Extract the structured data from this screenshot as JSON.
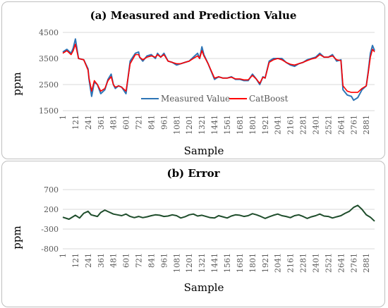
{
  "chart_data": [
    {
      "type": "line",
      "title": "(a) Measured and Prediction  Value",
      "xlabel": "Sample",
      "ylabel": "ppm",
      "ylim": [
        1500,
        4500
      ],
      "yticks": [
        "1500",
        "2500",
        "3500",
        "4500"
      ],
      "xlim": [
        1,
        2960
      ],
      "xticks": [
        "1",
        "121",
        "241",
        "361",
        "481",
        "601",
        "721",
        "841",
        "961",
        "1081",
        "1201",
        "1321",
        "1441",
        "1561",
        "1681",
        "1801",
        "1921",
        "2041",
        "2161",
        "2281",
        "2401",
        "2521",
        "2641",
        "2761",
        "2881"
      ],
      "grid": true,
      "legend_position": "bottom-left",
      "series": [
        {
          "name": "Measured Value",
          "color": "#2E75B6",
          "x": [
            1,
            40,
            80,
            100,
            121,
            150,
            200,
            241,
            250,
            275,
            300,
            330,
            361,
            400,
            430,
            460,
            481,
            500,
            530,
            560,
            601,
            640,
            690,
            721,
            730,
            760,
            800,
            841,
            880,
            900,
            930,
            961,
            1000,
            1040,
            1081,
            1120,
            1160,
            1201,
            1240,
            1280,
            1300,
            1321,
            1340,
            1380,
            1441,
            1480,
            1520,
            1561,
            1600,
            1640,
            1681,
            1720,
            1760,
            1801,
            1840,
            1870,
            1900,
            1921,
            1960,
            2000,
            2041,
            2080,
            2120,
            2161,
            2200,
            2240,
            2281,
            2320,
            2360,
            2401,
            2440,
            2480,
            2521,
            2560,
            2600,
            2641,
            2660,
            2700,
            2740,
            2761,
            2800,
            2840,
            2881,
            2900,
            2920,
            2940,
            2960
          ],
          "values": [
            3750,
            3850,
            3700,
            3900,
            4250,
            3500,
            3450,
            3100,
            2700,
            2050,
            2600,
            2500,
            2150,
            2300,
            2700,
            2900,
            2500,
            2350,
            2450,
            2400,
            2150,
            3400,
            3700,
            3750,
            3550,
            3400,
            3600,
            3650,
            3500,
            3700,
            3550,
            3700,
            3400,
            3350,
            3250,
            3300,
            3350,
            3400,
            3550,
            3700,
            3500,
            3950,
            3650,
            3300,
            2700,
            2800,
            2750,
            2750,
            2800,
            2700,
            2700,
            2650,
            2650,
            2900,
            2700,
            2500,
            2800,
            2750,
            3400,
            3500,
            3500,
            3500,
            3350,
            3250,
            3200,
            3300,
            3350,
            3450,
            3500,
            3550,
            3700,
            3550,
            3550,
            3650,
            3400,
            3450,
            2300,
            2100,
            2050,
            1900,
            2000,
            2300,
            2450,
            3000,
            3700,
            4000,
            3800
          ]
        },
        {
          "name": "CatBoost",
          "color": "#FF0000",
          "x": [
            1,
            40,
            80,
            100,
            121,
            150,
            200,
            241,
            250,
            275,
            300,
            330,
            361,
            400,
            430,
            460,
            481,
            500,
            530,
            560,
            601,
            640,
            690,
            721,
            730,
            760,
            800,
            841,
            880,
            900,
            930,
            961,
            1000,
            1040,
            1081,
            1120,
            1160,
            1201,
            1240,
            1280,
            1300,
            1321,
            1340,
            1380,
            1441,
            1480,
            1520,
            1561,
            1600,
            1640,
            1681,
            1720,
            1760,
            1801,
            1840,
            1870,
            1900,
            1921,
            1960,
            2000,
            2041,
            2080,
            2120,
            2161,
            2200,
            2240,
            2281,
            2320,
            2360,
            2401,
            2440,
            2480,
            2521,
            2560,
            2600,
            2641,
            2660,
            2700,
            2740,
            2761,
            2800,
            2840,
            2881,
            2900,
            2920,
            2940,
            2960
          ],
          "values": [
            3700,
            3800,
            3650,
            3800,
            4050,
            3500,
            3450,
            3050,
            2750,
            2250,
            2650,
            2500,
            2250,
            2350,
            2650,
            2800,
            2500,
            2400,
            2450,
            2400,
            2250,
            3300,
            3650,
            3650,
            3550,
            3450,
            3550,
            3600,
            3550,
            3650,
            3550,
            3650,
            3400,
            3350,
            3300,
            3300,
            3350,
            3400,
            3500,
            3600,
            3500,
            3800,
            3600,
            3300,
            2750,
            2800,
            2750,
            2750,
            2780,
            2720,
            2720,
            2680,
            2680,
            2850,
            2700,
            2550,
            2780,
            2750,
            3350,
            3450,
            3500,
            3450,
            3350,
            3280,
            3250,
            3300,
            3350,
            3420,
            3480,
            3520,
            3650,
            3550,
            3550,
            3600,
            3450,
            3420,
            2450,
            2250,
            2200,
            2200,
            2200,
            2350,
            2450,
            2950,
            3550,
            3850,
            3750
          ]
        }
      ]
    },
    {
      "type": "line",
      "title": "(b) Error",
      "xlabel": "Sample",
      "ylabel": "ppm",
      "ylim": [
        -800,
        700
      ],
      "yticks": [
        "700",
        "200",
        "-300",
        "-800"
      ],
      "xlim": [
        1,
        2960
      ],
      "xticks": [
        "1",
        "121",
        "241",
        "361",
        "481",
        "601",
        "721",
        "841",
        "961",
        "1081",
        "1201",
        "1321",
        "1441",
        "1561",
        "1681",
        "1801",
        "1921",
        "2041",
        "2161",
        "2281",
        "2401",
        "2521",
        "2641",
        "2761",
        "2881"
      ],
      "grid": true,
      "series": [
        {
          "color": "#1E4D2B",
          "x": [
            1,
            60,
            121,
            160,
            200,
            241,
            270,
            300,
            330,
            361,
            400,
            440,
            481,
            520,
            560,
            601,
            640,
            680,
            721,
            760,
            800,
            841,
            880,
            920,
            961,
            1000,
            1040,
            1081,
            1120,
            1160,
            1201,
            1240,
            1280,
            1321,
            1360,
            1400,
            1441,
            1480,
            1520,
            1561,
            1600,
            1640,
            1681,
            1720,
            1760,
            1801,
            1840,
            1880,
            1921,
            1960,
            2000,
            2041,
            2080,
            2120,
            2161,
            2200,
            2240,
            2281,
            2320,
            2360,
            2401,
            2440,
            2480,
            2521,
            2560,
            2600,
            2641,
            2680,
            2720,
            2761,
            2800,
            2840,
            2881,
            2920,
            2960
          ],
          "values": [
            0,
            -50,
            50,
            -20,
            100,
            150,
            60,
            40,
            20,
            120,
            180,
            130,
            80,
            60,
            40,
            80,
            20,
            -10,
            20,
            -10,
            10,
            40,
            60,
            50,
            20,
            30,
            60,
            40,
            -20,
            10,
            60,
            80,
            30,
            50,
            20,
            -10,
            -20,
            40,
            10,
            -20,
            30,
            60,
            50,
            20,
            40,
            90,
            60,
            20,
            -30,
            10,
            50,
            80,
            40,
            20,
            -10,
            40,
            60,
            20,
            -30,
            10,
            40,
            80,
            30,
            20,
            -20,
            10,
            40,
            100,
            150,
            250,
            300,
            200,
            60,
            0,
            -100
          ]
        }
      ]
    }
  ]
}
